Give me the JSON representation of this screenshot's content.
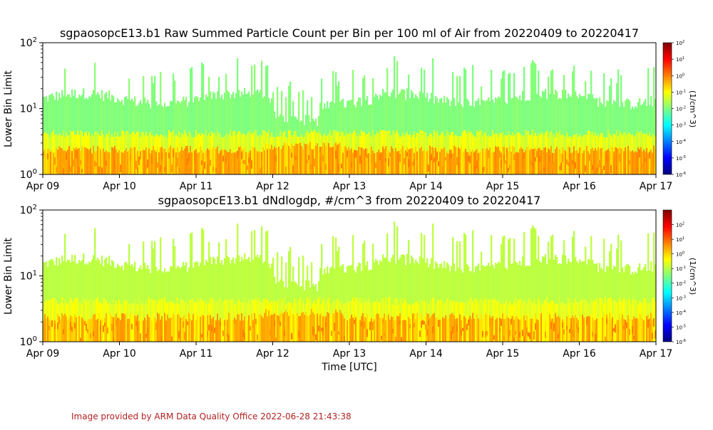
{
  "footer": {
    "credit": "Image provided by ARM Data Quality Office 2022-06-28 21:43:38"
  },
  "colors": {
    "colormap": [
      "#00007f",
      "#0000ff",
      "#007fff",
      "#00ffff",
      "#7fff7f",
      "#ffff00",
      "#ff7f00",
      "#ff0000",
      "#7f0000"
    ],
    "axis": "#000000",
    "credit": "#b22222"
  },
  "chart_data": [
    {
      "type": "heatmap",
      "title": "sgpaosopcE13.b1 Raw Summed Particle Count per Bin per 100 ml of Air from 20220409 to 20220417",
      "xlabel": "",
      "ylabel": "Lower Bin Limit",
      "x_ticks": [
        "Apr 09",
        "Apr 10",
        "Apr 11",
        "Apr 12",
        "Apr 13",
        "Apr 14",
        "Apr 15",
        "Apr 16",
        "Apr 17"
      ],
      "xlim": [
        "2022-04-09",
        "2022-04-17"
      ],
      "y_scale": "log",
      "ylim": [
        1,
        100
      ],
      "y_ticks": [
        "10^0",
        "10^1",
        "10^2"
      ],
      "colorbar": {
        "label": "(1/cm^3)",
        "scale": "log",
        "range": [
          1e-06,
          100
        ],
        "ticks": [
          "10^-6",
          "10^-5",
          "10^-4",
          "10^-3",
          "10^-2",
          "10^-1",
          "10^0",
          "10^1",
          "10^2"
        ]
      },
      "description_levels": {
        "lower_bins_1_to_3": "orange-yellow (~10^0)",
        "mid_bins_3_to_20": "light green (~10^-2)"
      }
    },
    {
      "type": "heatmap",
      "title": "sgpaosopcE13.b1 dNdlogdp, #/cm^3 from 20220409 to 20220417",
      "xlabel": "Time [UTC]",
      "ylabel": "Lower Bin Limit",
      "x_ticks": [
        "Apr 09",
        "Apr 10",
        "Apr 11",
        "Apr 12",
        "Apr 13",
        "Apr 14",
        "Apr 15",
        "Apr 16",
        "Apr 17"
      ],
      "xlim": [
        "2022-04-09",
        "2022-04-17"
      ],
      "y_scale": "log",
      "ylim": [
        1,
        100
      ],
      "y_ticks": [
        "10^0",
        "10^1",
        "10^2"
      ],
      "colorbar": {
        "label": "(1/cm^3)",
        "scale": "log",
        "range": [
          1e-06,
          1000
        ],
        "ticks": [
          "10^-6",
          "10^-5",
          "10^-4",
          "10^-3",
          "10^-2",
          "10^-1",
          "10^0",
          "10^1",
          "10^2"
        ]
      },
      "description_levels": {
        "lower_bins_1_to_3": "orange-yellow (~10^1)",
        "mid_bins_3_to_20": "yellow-green (~10^-1)"
      }
    }
  ]
}
